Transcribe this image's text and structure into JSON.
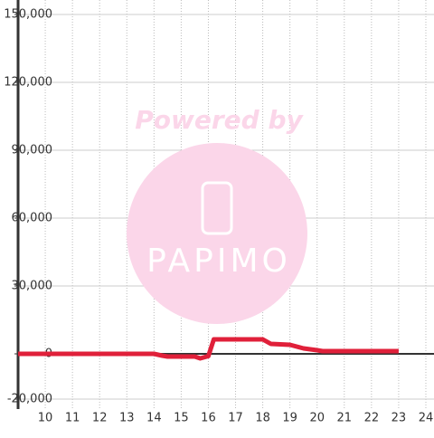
{
  "chart_data": {
    "type": "line",
    "watermark": {
      "title": "Powered by",
      "logo": "PAPIMO"
    },
    "x": [
      9,
      14,
      14.3,
      14.5,
      15.5,
      15.7,
      16,
      16.2,
      18,
      18.3,
      19,
      19.5,
      20,
      20.2,
      23
    ],
    "series": [
      {
        "color": "#e0203a",
        "values": [
          0,
          0,
          -800,
          -1200,
          -1200,
          -2000,
          -1000,
          6400,
          6400,
          4400,
          4000,
          2400,
          1600,
          1200,
          1200
        ]
      }
    ],
    "xlim": [
      9,
      24.3
    ],
    "xticks": [
      10,
      11,
      12,
      13,
      14,
      15,
      16,
      17,
      18,
      19,
      20,
      21,
      22,
      23,
      24
    ],
    "ylim": [
      -20000,
      150000
    ],
    "yticks": [
      {
        "value": -20000,
        "label": "-20,000"
      },
      0,
      {
        "value": 30000,
        "label": "30,000"
      },
      {
        "value": 60000,
        "label": "60,000"
      },
      {
        "value": 90000,
        "label": "90,000"
      },
      {
        "value": 120000,
        "label": "120,000"
      },
      {
        "value": 150000,
        "label": "150,000"
      }
    ],
    "grid": true
  }
}
